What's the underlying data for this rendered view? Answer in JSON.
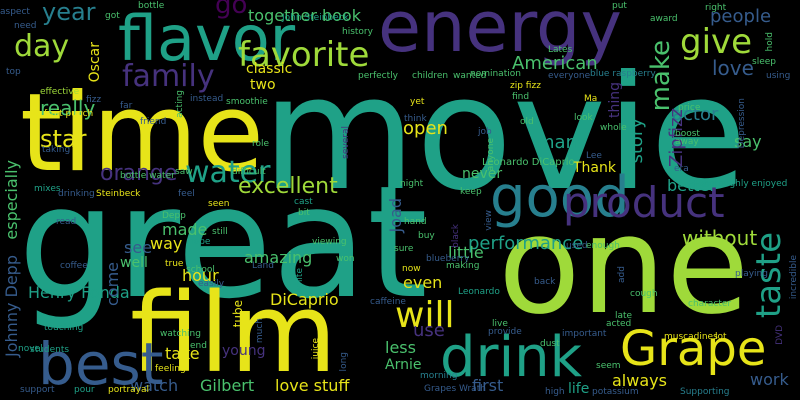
{
  "palette": {
    "yellow": "#e7e419",
    "lime": "#9fda3a",
    "green": "#4ac16d",
    "teal": "#1fa187",
    "cyan": "#277f8e",
    "blue": "#365c8d",
    "indigo": "#46327e",
    "purple": "#440154"
  },
  "words": [
    {
      "text": "movie",
      "color": "teal"
    },
    {
      "text": "great",
      "color": "teal"
    },
    {
      "text": "time",
      "color": "yellow"
    },
    {
      "text": "one",
      "color": "lime"
    },
    {
      "text": "film",
      "color": "yellow"
    },
    {
      "text": "energy",
      "color": "indigo"
    },
    {
      "text": "flavor",
      "color": "teal"
    },
    {
      "text": "good",
      "color": "cyan"
    },
    {
      "text": "drink",
      "color": "teal"
    },
    {
      "text": "best",
      "color": "blue"
    },
    {
      "text": "Grape",
      "color": "yellow"
    },
    {
      "text": "product",
      "color": "indigo"
    },
    {
      "text": "favorite",
      "color": "lime"
    },
    {
      "text": "will",
      "color": "yellow"
    },
    {
      "text": "give",
      "color": "lime"
    },
    {
      "text": "family",
      "color": "indigo"
    },
    {
      "text": "water",
      "color": "teal"
    },
    {
      "text": "taste",
      "color": "teal"
    },
    {
      "text": "day",
      "color": "lime"
    },
    {
      "text": "year",
      "color": "cyan"
    },
    {
      "text": "make",
      "color": "green"
    },
    {
      "text": "excellent",
      "color": "lime"
    },
    {
      "text": "orange",
      "color": "indigo"
    },
    {
      "text": "love",
      "color": "blue"
    },
    {
      "text": "people",
      "color": "blue"
    },
    {
      "text": "go",
      "color": "purple"
    },
    {
      "text": "star",
      "color": "yellow"
    },
    {
      "text": "really",
      "color": "green"
    },
    {
      "text": "American",
      "color": "green"
    },
    {
      "text": "together book",
      "color": "green"
    },
    {
      "text": "classic",
      "color": "yellow"
    },
    {
      "text": "actor",
      "color": "cyan"
    },
    {
      "text": "open",
      "color": "yellow"
    },
    {
      "text": "many",
      "color": "teal"
    },
    {
      "text": "Thank",
      "color": "yellow"
    },
    {
      "text": "story",
      "color": "teal"
    },
    {
      "text": "Zipfizz",
      "color": "indigo"
    },
    {
      "text": "say",
      "color": "green"
    },
    {
      "text": "better",
      "color": "teal"
    },
    {
      "text": "without",
      "color": "lime"
    },
    {
      "text": "performance",
      "color": "teal"
    },
    {
      "text": "made",
      "color": "green"
    },
    {
      "text": "way",
      "color": "yellow"
    },
    {
      "text": "see",
      "color": "blue"
    },
    {
      "text": "well",
      "color": "green"
    },
    {
      "text": "amazing",
      "color": "green"
    },
    {
      "text": "hour",
      "color": "yellow"
    },
    {
      "text": "little",
      "color": "green"
    },
    {
      "text": "even",
      "color": "yellow"
    },
    {
      "text": "never",
      "color": "green"
    },
    {
      "text": "Joad",
      "color": "blue"
    },
    {
      "text": "Johnny Depp",
      "color": "blue"
    },
    {
      "text": "especially",
      "color": "green"
    },
    {
      "text": "Henry Fonda",
      "color": "teal"
    },
    {
      "text": "DiCaprio",
      "color": "yellow"
    },
    {
      "text": "take",
      "color": "yellow"
    },
    {
      "text": "young",
      "color": "indigo"
    },
    {
      "text": "use",
      "color": "indigo"
    },
    {
      "text": "less",
      "color": "green"
    },
    {
      "text": "Arnie",
      "color": "green"
    },
    {
      "text": "watch",
      "color": "blue"
    },
    {
      "text": "Gilbert",
      "color": "green"
    },
    {
      "text": "love stuff",
      "color": "yellow"
    },
    {
      "text": "first",
      "color": "blue"
    },
    {
      "text": "life",
      "color": "teal"
    },
    {
      "text": "always",
      "color": "yellow"
    },
    {
      "text": "work",
      "color": "blue"
    },
    {
      "text": "Oscar",
      "color": "yellow"
    },
    {
      "text": "two",
      "color": "yellow"
    },
    {
      "text": "come",
      "color": "blue"
    },
    {
      "text": "tube",
      "color": "yellow"
    },
    {
      "text": "thing",
      "color": "indigo"
    },
    {
      "text": "Leonardo DiCaprio",
      "color": "green"
    },
    {
      "text": "John Steinbeck",
      "color": "teal"
    },
    {
      "text": "bottle water",
      "color": "green"
    },
    {
      "text": "fruit punch",
      "color": "yellow"
    },
    {
      "text": "blue raspberry",
      "color": "cyan"
    },
    {
      "text": "zip fizz",
      "color": "yellow"
    },
    {
      "text": "Depression",
      "color": "blue"
    },
    {
      "text": "thoroughly enjoyed",
      "color": "teal"
    },
    {
      "text": "Grapes Wrath",
      "color": "blue"
    },
    {
      "text": "Steinbeck",
      "color": "yellow"
    },
    {
      "text": "smoothie",
      "color": "green"
    },
    {
      "text": "effective",
      "color": "lime"
    },
    {
      "text": "fizz",
      "color": "blue"
    },
    {
      "text": "friend",
      "color": "blue"
    },
    {
      "text": "taking",
      "color": "blue"
    },
    {
      "text": "mixes",
      "color": "teal"
    },
    {
      "text": "drinking",
      "color": "blue"
    },
    {
      "text": "feel",
      "color": "blue"
    },
    {
      "text": "difficult",
      "color": "green"
    },
    {
      "text": "seen",
      "color": "yellow"
    },
    {
      "text": "cast",
      "color": "teal"
    },
    {
      "text": "bit",
      "color": "green"
    },
    {
      "text": "hope",
      "color": "teal"
    },
    {
      "text": "viewing",
      "color": "green"
    },
    {
      "text": "won",
      "color": "green"
    },
    {
      "text": "school",
      "color": "green"
    },
    {
      "text": "true",
      "color": "yellow"
    },
    {
      "text": "Land",
      "color": "blue"
    },
    {
      "text": "white",
      "color": "teal"
    },
    {
      "text": "caffeine",
      "color": "blue"
    },
    {
      "text": "Leonardo",
      "color": "teal"
    },
    {
      "text": "touching",
      "color": "teal"
    },
    {
      "text": "watching",
      "color": "green"
    },
    {
      "text": "feeling",
      "color": "yellow"
    },
    {
      "text": "students",
      "color": "teal"
    },
    {
      "text": "novel",
      "color": "teal"
    },
    {
      "text": "support",
      "color": "blue"
    },
    {
      "text": "pour",
      "color": "teal"
    },
    {
      "text": "portrayal",
      "color": "yellow"
    },
    {
      "text": "juice",
      "color": "yellow"
    },
    {
      "text": "long",
      "color": "blue"
    },
    {
      "text": "morning",
      "color": "cyan"
    },
    {
      "text": "dust",
      "color": "green"
    },
    {
      "text": "important",
      "color": "blue"
    },
    {
      "text": "seem",
      "color": "green"
    },
    {
      "text": "potassium",
      "color": "blue"
    },
    {
      "text": "character",
      "color": "green"
    },
    {
      "text": "muscadines",
      "color": "yellow"
    },
    {
      "text": "lot",
      "color": "yellow"
    },
    {
      "text": "Supporting",
      "color": "cyan"
    },
    {
      "text": "DVD",
      "color": "indigo"
    },
    {
      "text": "incredible",
      "color": "blue"
    },
    {
      "text": "cough",
      "color": "green"
    },
    {
      "text": "late",
      "color": "green"
    },
    {
      "text": "acted",
      "color": "green"
    },
    {
      "text": "playing",
      "color": "blue"
    },
    {
      "text": "sleep",
      "color": "green"
    },
    {
      "text": "using",
      "color": "blue"
    },
    {
      "text": "price",
      "color": "green"
    },
    {
      "text": "boost",
      "color": "green"
    },
    {
      "text": "away",
      "color": "green"
    },
    {
      "text": "right",
      "color": "green"
    },
    {
      "text": "award",
      "color": "green"
    },
    {
      "text": "put",
      "color": "green"
    },
    {
      "text": "Lates",
      "color": "green"
    },
    {
      "text": "nomination",
      "color": "green"
    },
    {
      "text": "wanted",
      "color": "green"
    },
    {
      "text": "everyone",
      "color": "blue"
    },
    {
      "text": "perfectly",
      "color": "green"
    },
    {
      "text": "children",
      "color": "green"
    },
    {
      "text": "history",
      "color": "green"
    },
    {
      "text": "bottle",
      "color": "green"
    },
    {
      "text": "acting",
      "color": "green"
    },
    {
      "text": "got",
      "color": "green"
    },
    {
      "text": "need",
      "color": "blue"
    },
    {
      "text": "aspect",
      "color": "blue"
    },
    {
      "text": "top",
      "color": "blue"
    },
    {
      "text": "far",
      "color": "blue"
    },
    {
      "text": "instead",
      "color": "blue"
    },
    {
      "text": "role",
      "color": "green"
    },
    {
      "text": "saw",
      "color": "green"
    },
    {
      "text": "several",
      "color": "indigo"
    },
    {
      "text": "think",
      "color": "blue"
    },
    {
      "text": "yet",
      "color": "yellow"
    },
    {
      "text": "Ma",
      "color": "yellow"
    },
    {
      "text": "job",
      "color": "blue"
    },
    {
      "text": "anyone",
      "color": "green"
    },
    {
      "text": "old",
      "color": "green"
    },
    {
      "text": "look",
      "color": "green"
    },
    {
      "text": "whole",
      "color": "green"
    },
    {
      "text": "find",
      "color": "green"
    },
    {
      "text": "Lee",
      "color": "blue"
    },
    {
      "text": "era",
      "color": "blue"
    },
    {
      "text": "night",
      "color": "green"
    },
    {
      "text": "keep",
      "color": "green"
    },
    {
      "text": "hand",
      "color": "green"
    },
    {
      "text": "buy",
      "color": "green"
    },
    {
      "text": "sure",
      "color": "green"
    },
    {
      "text": "blueberry",
      "color": "blue"
    },
    {
      "text": "now",
      "color": "yellow"
    },
    {
      "text": "making",
      "color": "green"
    },
    {
      "text": "black",
      "color": "indigo"
    },
    {
      "text": "view",
      "color": "blue"
    },
    {
      "text": "used",
      "color": "blue"
    },
    {
      "text": "enough",
      "color": "green"
    },
    {
      "text": "add",
      "color": "blue"
    },
    {
      "text": "back",
      "color": "blue"
    },
    {
      "text": "live",
      "color": "green"
    },
    {
      "text": "provide",
      "color": "blue"
    },
    {
      "text": "high",
      "color": "blue"
    },
    {
      "text": "coffee",
      "color": "blue"
    },
    {
      "text": "read",
      "color": "blue"
    },
    {
      "text": "Depp",
      "color": "green"
    },
    {
      "text": "easily",
      "color": "blue"
    },
    {
      "text": "hold",
      "color": "green"
    },
    {
      "text": "end",
      "color": "green"
    },
    {
      "text": "much",
      "color": "blue"
    },
    {
      "text": "still",
      "color": "green"
    }
  ]
}
